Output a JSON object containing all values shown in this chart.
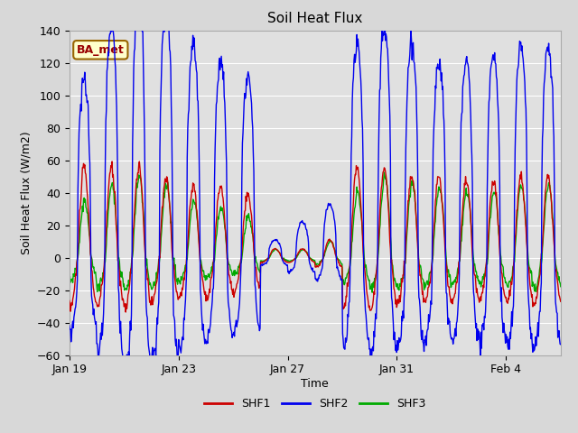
{
  "title": "Soil Heat Flux",
  "ylabel": "Soil Heat Flux (W/m2)",
  "xlabel": "Time",
  "ylim": [
    -60,
    140
  ],
  "yticks": [
    -60,
    -40,
    -20,
    0,
    20,
    40,
    60,
    80,
    100,
    120,
    140
  ],
  "colors": {
    "SHF1": "#cc0000",
    "SHF2": "#0000ee",
    "SHF3": "#00aa00"
  },
  "legend_label": "BA_met",
  "legend_bg": "#ffffcc",
  "legend_border": "#996600",
  "fig_bg": "#d8d8d8",
  "axes_bg": "#e0e0e0",
  "tick_days": [
    0,
    4,
    8,
    12,
    16
  ],
  "tick_labels": [
    "Jan 19",
    "Jan 23",
    "Jan 27",
    "Jan 31",
    "Feb 4"
  ],
  "n_days": 18,
  "n_per_day": 48
}
